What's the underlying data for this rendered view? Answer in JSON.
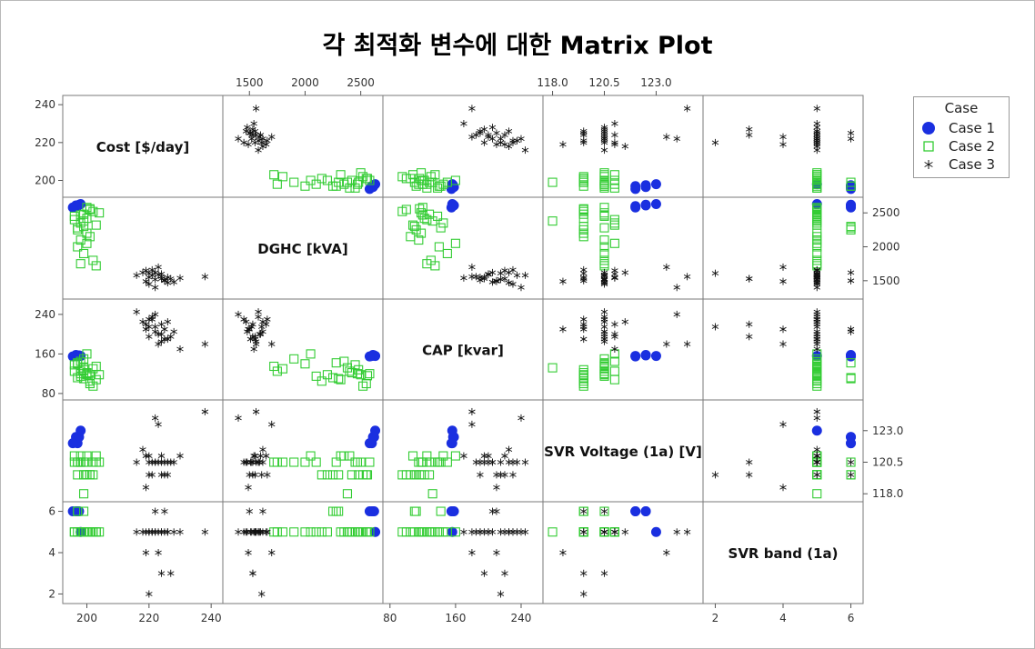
{
  "title": "각 최적화 변수에 대한 Matrix Plot",
  "legend": {
    "title": "Case",
    "items": [
      {
        "label": "Case 1",
        "marker": "filled-circle",
        "color": "#1a2fe0"
      },
      {
        "label": "Case 2",
        "marker": "open-square",
        "color": "#33cc33"
      },
      {
        "label": "Case 3",
        "marker": "asterisk",
        "color": "#111111"
      }
    ]
  },
  "chart_data": {
    "type": "scatter",
    "title": "각 최적화 변수에 대한 Matrix Plot",
    "variables": [
      {
        "key": "cost",
        "label": "Cost [$/day]",
        "range": [
          194,
          242
        ],
        "ticks": [
          200,
          220,
          240
        ]
      },
      {
        "key": "dghc",
        "label": "DGHC [kVA]",
        "range": [
          1310,
          2650
        ],
        "ticks": [
          1500,
          2000,
          2500
        ]
      },
      {
        "key": "cap",
        "label": "CAP [kvar]",
        "range": [
          78,
          260
        ],
        "ticks": [
          80,
          160,
          240
        ]
      },
      {
        "key": "svrv",
        "label": "SVR Voltage (1a) [V]",
        "range": [
          117.8,
          125.0
        ],
        "ticks": [
          118.0,
          120.5,
          123.0
        ]
      },
      {
        "key": "band",
        "label": "SVR band (1a)",
        "range": [
          1.8,
          6.2
        ],
        "ticks": [
          2,
          4,
          6
        ]
      }
    ],
    "tick_labels": {
      "cost": [
        "200",
        "220",
        "240"
      ],
      "dghc": [
        "1500",
        "2000",
        "2500"
      ],
      "cap": [
        "80",
        "160",
        "240"
      ],
      "svrv": [
        "118.0",
        "120.5",
        "123.0"
      ],
      "band": [
        "2",
        "4",
        "6"
      ]
    },
    "axis_placement": {
      "top": [
        "dghc",
        "svrv"
      ],
      "bottom": [
        "cost",
        "cap",
        "band"
      ],
      "left": [
        "cost",
        "cap",
        "band"
      ],
      "right": [
        "dghc",
        "svrv"
      ]
    },
    "grid": false,
    "legend_position": "top-right",
    "series": [
      {
        "name": "Case 1",
        "marker": "filled-circle",
        "color": "#1a2fe0",
        "points": [
          [
            196.5,
            2610,
            158,
            122.5,
            6
          ],
          [
            197.0,
            2600,
            156,
            122.0,
            6
          ],
          [
            197.5,
            2620,
            157,
            122.5,
            6
          ],
          [
            198.0,
            2630,
            156,
            123.0,
            5
          ],
          [
            195.5,
            2580,
            155,
            122.0,
            6
          ]
        ]
      },
      {
        "name": "Case 2",
        "marker": "open-square",
        "color": "#33cc33",
        "points": [
          [
            198,
            2470,
            120,
            120.5,
            5
          ],
          [
            200,
            2200,
            118,
            119.5,
            5
          ],
          [
            202,
            1800,
            130,
            120.5,
            5
          ],
          [
            199,
            2300,
            110,
            119.5,
            6
          ],
          [
            196,
            2400,
            125,
            121.0,
            5
          ],
          [
            198,
            2100,
            115,
            120.5,
            5
          ],
          [
            201,
            2550,
            100,
            119.5,
            5
          ],
          [
            197,
            2000,
            140,
            120.5,
            5
          ],
          [
            199,
            2480,
            128,
            119.5,
            5
          ],
          [
            203,
            1720,
            135,
            120.5,
            5
          ],
          [
            200,
            2420,
            122,
            119.5,
            5
          ],
          [
            198,
            2350,
            145,
            121.0,
            5
          ],
          [
            204,
            2500,
            118,
            120.5,
            5
          ],
          [
            197,
            2250,
            112,
            119.5,
            6
          ],
          [
            199,
            1900,
            150,
            120.5,
            5
          ],
          [
            201,
            2150,
            105,
            119.5,
            5
          ],
          [
            196,
            2450,
            138,
            120.5,
            5
          ],
          [
            202,
            2520,
            95,
            119.5,
            5
          ],
          [
            200,
            2050,
            160,
            121.0,
            5
          ],
          [
            198,
            1750,
            125,
            120.5,
            5
          ],
          [
            199,
            2380,
            132,
            118.0,
            5
          ],
          [
            201,
            2560,
            116,
            119.5,
            5
          ],
          [
            197,
            2280,
            142,
            120.5,
            6
          ],
          [
            203,
            2320,
            108,
            121.0,
            5
          ],
          [
            200,
            2580,
            120,
            120.5,
            5
          ]
        ]
      },
      {
        "name": "Case 3",
        "marker": "asterisk",
        "color": "#111111",
        "points": [
          [
            222,
            1520,
            215,
            120.5,
            5
          ],
          [
            224,
            1600,
            200,
            121.0,
            5
          ],
          [
            220,
            1450,
            230,
            120.5,
            5
          ],
          [
            226,
            1550,
            190,
            119.5,
            5
          ],
          [
            218,
            1620,
            225,
            121.5,
            5
          ],
          [
            228,
            1480,
            205,
            120.5,
            5
          ],
          [
            223,
            1700,
            180,
            123.5,
            4
          ],
          [
            221,
            1580,
            235,
            120.5,
            5
          ],
          [
            225,
            1500,
            210,
            119.5,
            6
          ],
          [
            219,
            1650,
            220,
            121.0,
            5
          ],
          [
            227,
            1530,
            195,
            120.5,
            3
          ],
          [
            222,
            1400,
            240,
            124.0,
            5
          ],
          [
            224,
            1560,
            185,
            120.5,
            5
          ],
          [
            220,
            1610,
            215,
            119.5,
            2
          ],
          [
            226,
            1470,
            225,
            120.5,
            5
          ],
          [
            230,
            1540,
            170,
            121.0,
            5
          ],
          [
            223,
            1590,
            200,
            120.5,
            5
          ],
          [
            221,
            1660,
            230,
            119.5,
            5
          ],
          [
            225,
            1510,
            190,
            120.5,
            5
          ],
          [
            219,
            1490,
            210,
            118.5,
            4
          ],
          [
            238,
            1560,
            180,
            124.5,
            5
          ],
          [
            216,
            1580,
            245,
            120.5,
            5
          ],
          [
            224,
            1530,
            220,
            119.5,
            3
          ],
          [
            222,
            1620,
            205,
            120.5,
            6
          ],
          [
            220,
            1550,
            195,
            121.0,
            5
          ]
        ]
      }
    ]
  }
}
